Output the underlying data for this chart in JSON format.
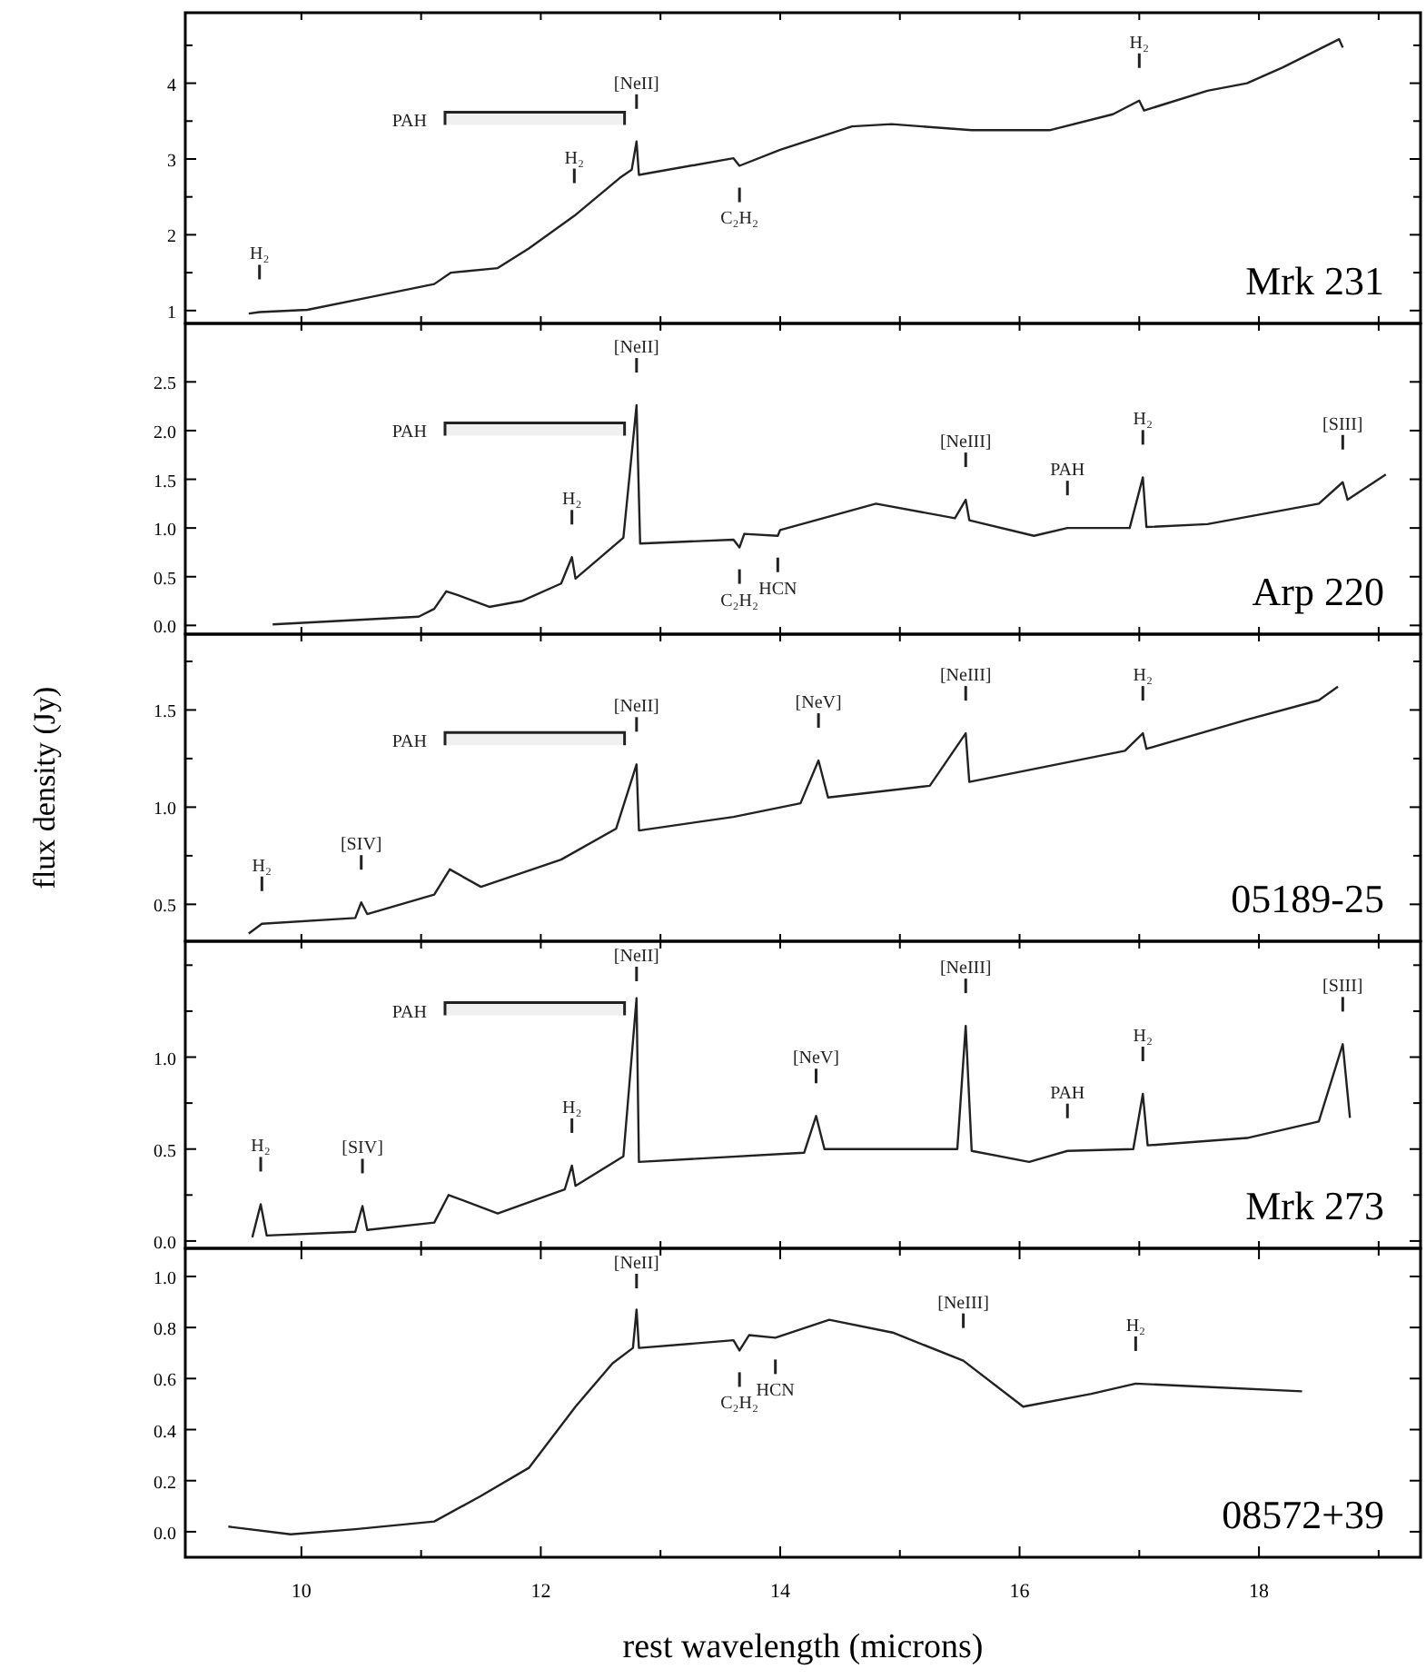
{
  "chart_data": [
    {
      "type": "line",
      "title": "Mrk 231",
      "xlim": [
        9.03,
        19.35
      ],
      "ylim": [
        0.83,
        4.93
      ],
      "tick_labels": "y",
      "xticks": [
        {
          "value": 10,
          "label": null
        },
        {
          "value": 11,
          "label": null
        },
        {
          "value": 12,
          "label": null
        },
        {
          "value": 13,
          "label": null
        },
        {
          "value": 14,
          "label": null
        },
        {
          "value": 15,
          "label": null
        },
        {
          "value": 16,
          "label": null
        },
        {
          "value": 17,
          "label": null
        },
        {
          "value": 18,
          "label": null
        },
        {
          "value": 19,
          "label": null
        }
      ],
      "yticks": [
        1,
        {
          "value": 1.5,
          "label": null
        },
        2,
        {
          "value": 2.5,
          "label": null
        },
        3,
        {
          "value": 3.5,
          "label": null
        },
        4,
        {
          "value": 4.5,
          "label": null
        }
      ],
      "series": [
        {
          "color": "#222222",
          "x": [
            9.56,
            9.65,
            10.05,
            10.58,
            11.11,
            11.25,
            11.64,
            11.9,
            12.28,
            12.66,
            12.76,
            12.8,
            12.82,
            13.61,
            13.66,
            14.0,
            14.6,
            14.93,
            15.6,
            16.25,
            16.78,
            17.0,
            17.04,
            17.57,
            17.9,
            18.2,
            18.67,
            18.7
          ],
          "values": [
            0.96,
            0.98,
            1.01,
            1.18,
            1.35,
            1.5,
            1.56,
            1.82,
            2.25,
            2.75,
            2.86,
            3.23,
            2.79,
            3.01,
            2.91,
            3.12,
            3.43,
            3.46,
            3.38,
            3.38,
            3.59,
            3.77,
            3.64,
            3.9,
            4.0,
            4.21,
            4.58,
            4.47
          ]
        }
      ],
      "bands": [
        {
          "axis": "x",
          "from": 11.2,
          "to": 12.7,
          "label": "PAH"
        }
      ],
      "annotations": [
        {
          "text": "H₂",
          "x": 9.65,
          "y": 0.98
        },
        {
          "text": "H₂",
          "x": 12.28,
          "y": 2.25
        },
        {
          "text": "[NeII]",
          "x": 12.8,
          "y": 3.23
        },
        {
          "text": "C₂H₂",
          "x": 13.66,
          "y": 2.91
        },
        {
          "text": "H₂",
          "x": 17.0,
          "y": 3.77
        }
      ]
    },
    {
      "type": "line",
      "title": "Arp 220",
      "xlim": [
        9.03,
        19.35
      ],
      "ylim": [
        -0.09,
        3.1
      ],
      "tick_labels": "y",
      "xticks": [
        {
          "value": 10,
          "label": null
        },
        {
          "value": 11,
          "label": null
        },
        {
          "value": 12,
          "label": null
        },
        {
          "value": 13,
          "label": null
        },
        {
          "value": 14,
          "label": null
        },
        {
          "value": 15,
          "label": null
        },
        {
          "value": 16,
          "label": null
        },
        {
          "value": 17,
          "label": null
        },
        {
          "value": 18,
          "label": null
        },
        {
          "value": 19,
          "label": null
        }
      ],
      "yticks": [
        {
          "value": 0,
          "label": "0.0"
        },
        {
          "value": 0.5,
          "label": "0.5"
        },
        {
          "value": 1,
          "label": "1.0"
        },
        {
          "value": 1.5,
          "label": "1.5"
        },
        {
          "value": 2,
          "label": "2.0"
        },
        {
          "value": 2.5,
          "label": "2.5"
        }
      ],
      "series": [
        {
          "color": "#222222",
          "x": [
            9.76,
            10.98,
            11.11,
            11.21,
            11.31,
            11.57,
            11.84,
            12.17,
            12.26,
            12.29,
            12.69,
            12.8,
            12.83,
            13.61,
            13.66,
            13.7,
            13.98,
            14.0,
            14.8,
            15.46,
            15.55,
            15.58,
            16.12,
            16.4,
            16.92,
            17.03,
            17.06,
            17.57,
            18.5,
            18.7,
            18.74,
            19.06
          ],
          "values": [
            0.01,
            0.09,
            0.17,
            0.35,
            0.31,
            0.19,
            0.25,
            0.43,
            0.7,
            0.48,
            0.9,
            2.26,
            0.84,
            0.88,
            0.8,
            0.94,
            0.92,
            0.98,
            1.25,
            1.1,
            1.29,
            1.08,
            0.92,
            1.0,
            1.0,
            1.52,
            1.01,
            1.04,
            1.25,
            1.47,
            1.29,
            1.55
          ]
        }
      ],
      "bands": [
        {
          "axis": "x",
          "from": 11.2,
          "to": 12.7,
          "label": "PAH"
        }
      ],
      "annotations": [
        {
          "text": "[NeII]",
          "x": 12.8,
          "y": 2.26
        },
        {
          "text": "H₂",
          "x": 12.26,
          "y": 0.7
        },
        {
          "text": "C₂H₂",
          "x": 13.66,
          "y": 0.8
        },
        {
          "text": "HCN",
          "x": 13.98,
          "y": 0.92
        },
        {
          "text": "[NeIII]",
          "x": 15.55,
          "y": 1.29
        },
        {
          "text": "PAH",
          "x": 16.4,
          "y": 1.0
        },
        {
          "text": "H₂",
          "x": 17.03,
          "y": 1.52
        },
        {
          "text": "[SIII]",
          "x": 18.7,
          "y": 1.47
        }
      ]
    },
    {
      "type": "line",
      "title": "05189-25",
      "ylabel": "flux density (Jy)",
      "xlim": [
        9.03,
        19.35
      ],
      "ylim": [
        0.31,
        1.89
      ],
      "tick_labels": "y",
      "xticks": [
        {
          "value": 10,
          "label": null
        },
        {
          "value": 11,
          "label": null
        },
        {
          "value": 12,
          "label": null
        },
        {
          "value": 13,
          "label": null
        },
        {
          "value": 14,
          "label": null
        },
        {
          "value": 15,
          "label": null
        },
        {
          "value": 16,
          "label": null
        },
        {
          "value": 17,
          "label": null
        },
        {
          "value": 18,
          "label": null
        },
        {
          "value": 19,
          "label": null
        }
      ],
      "yticks": [
        {
          "value": 0.5,
          "label": "0.5"
        },
        {
          "value": 0.75,
          "label": null
        },
        {
          "value": 1,
          "label": "1.0"
        },
        {
          "value": 1.25,
          "label": null
        },
        {
          "value": 1.5,
          "label": "1.5"
        },
        {
          "value": 1.75,
          "label": null
        }
      ],
      "series": [
        {
          "color": "#222222",
          "x": [
            9.56,
            9.67,
            10.45,
            10.5,
            10.55,
            11.11,
            11.24,
            11.5,
            12.17,
            12.63,
            12.8,
            12.82,
            13.61,
            14.17,
            14.32,
            14.4,
            15.25,
            15.55,
            15.58,
            16.88,
            17.03,
            17.06,
            17.9,
            18.5,
            18.66
          ],
          "values": [
            0.35,
            0.4,
            0.43,
            0.51,
            0.45,
            0.55,
            0.68,
            0.59,
            0.73,
            0.89,
            1.22,
            0.88,
            0.95,
            1.02,
            1.24,
            1.05,
            1.11,
            1.38,
            1.13,
            1.29,
            1.38,
            1.3,
            1.45,
            1.55,
            1.62
          ]
        }
      ],
      "bands": [
        {
          "axis": "x",
          "from": 11.2,
          "to": 12.7,
          "label": "PAH"
        }
      ],
      "annotations": [
        {
          "text": "H₂",
          "x": 9.67,
          "y": 0.4
        },
        {
          "text": "[SIV]",
          "x": 10.5,
          "y": 0.51
        },
        {
          "text": "[NeII]",
          "x": 12.8,
          "y": 1.22
        },
        {
          "text": "[NeV]",
          "x": 14.32,
          "y": 1.24
        },
        {
          "text": "[NeIII]",
          "x": 15.55,
          "y": 1.38
        },
        {
          "text": "H₂",
          "x": 17.03,
          "y": 1.38
        }
      ]
    },
    {
      "type": "line",
      "title": "Mrk 273",
      "xlim": [
        9.03,
        19.35
      ],
      "ylim": [
        -0.04,
        1.63
      ],
      "tick_labels": "y",
      "xticks": [
        {
          "value": 10,
          "label": null
        },
        {
          "value": 11,
          "label": null
        },
        {
          "value": 12,
          "label": null
        },
        {
          "value": 13,
          "label": null
        },
        {
          "value": 14,
          "label": null
        },
        {
          "value": 15,
          "label": null
        },
        {
          "value": 16,
          "label": null
        },
        {
          "value": 17,
          "label": null
        },
        {
          "value": 18,
          "label": null
        },
        {
          "value": 19,
          "label": null
        }
      ],
      "yticks": [
        {
          "value": 0,
          "label": "0.0"
        },
        {
          "value": 0.25,
          "label": null
        },
        {
          "value": 0.5,
          "label": "0.5"
        },
        {
          "value": 0.75,
          "label": null
        },
        {
          "value": 1,
          "label": "1.0"
        },
        {
          "value": 1.25,
          "label": null
        },
        {
          "value": 1.5,
          "label": null
        }
      ],
      "series": [
        {
          "color": "#222222",
          "x": [
            9.59,
            9.66,
            9.71,
            10.45,
            10.51,
            10.55,
            11.11,
            11.23,
            11.64,
            12.2,
            12.26,
            12.29,
            12.69,
            12.8,
            12.82,
            14.2,
            14.3,
            14.37,
            15.48,
            15.55,
            15.6,
            16.08,
            16.4,
            16.95,
            17.03,
            17.07,
            17.9,
            18.5,
            18.7,
            18.76
          ],
          "values": [
            0.02,
            0.2,
            0.03,
            0.05,
            0.19,
            0.06,
            0.1,
            0.25,
            0.15,
            0.28,
            0.41,
            0.3,
            0.46,
            1.32,
            0.43,
            0.48,
            0.68,
            0.5,
            0.5,
            1.17,
            0.49,
            0.43,
            0.49,
            0.5,
            0.8,
            0.52,
            0.56,
            0.65,
            1.07,
            0.67
          ]
        }
      ],
      "bands": [
        {
          "axis": "x",
          "from": 11.2,
          "to": 12.7,
          "label": "PAH"
        }
      ],
      "annotations": [
        {
          "text": "H₂",
          "x": 9.66,
          "y": 0.2
        },
        {
          "text": "[SIV]",
          "x": 10.51,
          "y": 0.19
        },
        {
          "text": "H₂",
          "x": 12.26,
          "y": 0.41
        },
        {
          "text": "[NeII]",
          "x": 12.8,
          "y": 1.32
        },
        {
          "text": "[NeV]",
          "x": 14.3,
          "y": 0.68
        },
        {
          "text": "[NeIII]",
          "x": 15.55,
          "y": 1.17
        },
        {
          "text": "PAH",
          "x": 16.4,
          "y": 0.49
        },
        {
          "text": "H₂",
          "x": 17.03,
          "y": 0.8
        },
        {
          "text": "[SIII]",
          "x": 18.7,
          "y": 1.07
        }
      ]
    },
    {
      "type": "line",
      "title": "08572+39",
      "xlabel": "rest wavelength (microns)",
      "xlim": [
        9.03,
        19.35
      ],
      "ylim": [
        -0.1,
        1.11
      ],
      "xticks": [
        10,
        {
          "value": 11,
          "label": null
        },
        12,
        {
          "value": 13,
          "label": null
        },
        14,
        {
          "value": 15,
          "label": null
        },
        16,
        {
          "value": 17,
          "label": null
        },
        18,
        {
          "value": 19,
          "label": null
        }
      ],
      "yticks": [
        {
          "value": 0,
          "label": "0.0"
        },
        {
          "value": 0.2,
          "label": "0.2"
        },
        {
          "value": 0.4,
          "label": "0.4"
        },
        {
          "value": 0.6,
          "label": "0.6"
        },
        {
          "value": 0.8,
          "label": "0.8"
        },
        {
          "value": 1,
          "label": "1.0"
        }
      ],
      "series": [
        {
          "color": "#222222",
          "x": [
            9.39,
            9.91,
            10.45,
            11.11,
            11.5,
            11.9,
            12.29,
            12.6,
            12.77,
            12.8,
            12.82,
            13.61,
            13.66,
            13.74,
            13.96,
            14.41,
            14.94,
            15.53,
            16.03,
            16.6,
            16.97,
            17.44,
            18.36
          ],
          "values": [
            0.02,
            -0.01,
            0.01,
            0.04,
            0.14,
            0.25,
            0.49,
            0.66,
            0.72,
            0.87,
            0.72,
            0.75,
            0.71,
            0.77,
            0.76,
            0.83,
            0.78,
            0.67,
            0.49,
            0.54,
            0.58,
            0.57,
            0.55
          ]
        }
      ],
      "annotations": [
        {
          "text": "[NeII]",
          "x": 12.8,
          "y": 0.87
        },
        {
          "text": "C₂H₂",
          "x": 13.66,
          "y": 0.71
        },
        {
          "text": "HCN",
          "x": 13.96,
          "y": 0.76
        },
        {
          "text": "[NeIII]",
          "x": 15.53,
          "y": 0.67
        },
        {
          "text": "H₂",
          "x": 16.97,
          "y": 0.58
        }
      ]
    }
  ]
}
